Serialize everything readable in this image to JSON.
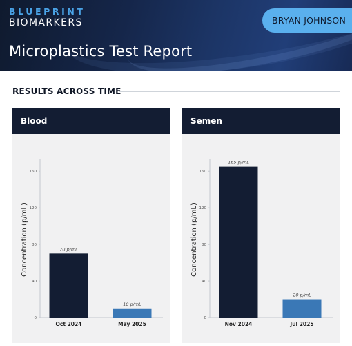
{
  "header": {
    "brand_line1": "BLUEPRINT",
    "brand_line2": "BIOMARKERS",
    "user_name": "BRYAN JOHNSON",
    "report_title": "Microplastics Test Report"
  },
  "section": {
    "title": "RESULTS ACROSS TIME"
  },
  "colors": {
    "dark_bar": "#131d33",
    "light_bar": "#3a78b6",
    "accent": "#5ab0ee"
  },
  "chart_data": [
    {
      "type": "bar",
      "title": "Blood",
      "ylabel": "Concentration (p/mL)",
      "ylim": [
        0,
        170
      ],
      "yticks": [
        0,
        40,
        80,
        120,
        160
      ],
      "categories": [
        "Oct 2024",
        "May 2025"
      ],
      "values": [
        70,
        10
      ],
      "data_labels": [
        "70 p/mL",
        "10 p/mL"
      ],
      "bar_colors": [
        "#131d33",
        "#3a78b6"
      ]
    },
    {
      "type": "bar",
      "title": "Semen",
      "ylabel": "Concentration (p/mL)",
      "ylim": [
        0,
        170
      ],
      "yticks": [
        0,
        40,
        80,
        120,
        160
      ],
      "categories": [
        "Nov 2024",
        "Jul 2025"
      ],
      "values": [
        165,
        20
      ],
      "data_labels": [
        "165 p/mL",
        "20 p/mL"
      ],
      "bar_colors": [
        "#131d33",
        "#3a78b6"
      ]
    }
  ]
}
